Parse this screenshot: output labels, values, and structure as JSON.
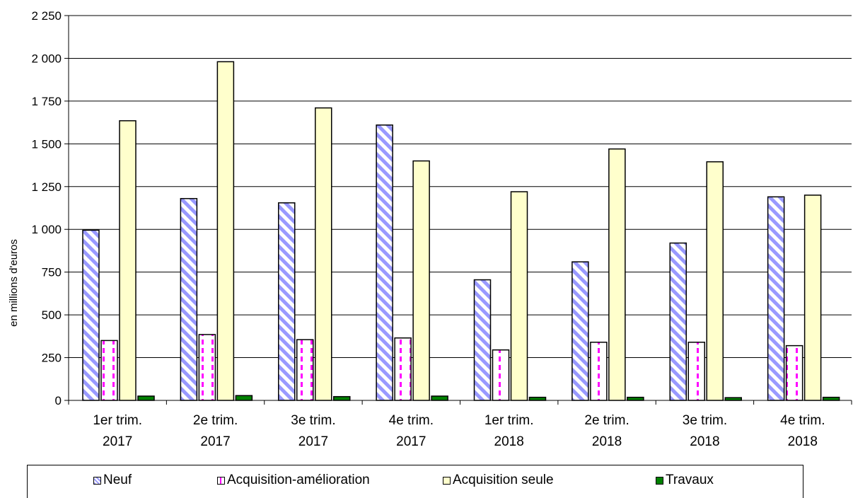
{
  "chart_data": {
    "type": "bar",
    "ylabel": "en millions d'euros",
    "ylim": [
      0,
      2250
    ],
    "yticks": [
      0,
      250,
      500,
      750,
      1000,
      1250,
      1500,
      1750,
      2000,
      2250
    ],
    "ytick_labels": [
      "0",
      "250",
      "500",
      "750",
      "1 000",
      "1 250",
      "1 500",
      "1 750",
      "2 000",
      "2 250"
    ],
    "categories": [
      [
        "1er trim.",
        "2017"
      ],
      [
        "2e trim.",
        "2017"
      ],
      [
        "3e trim.",
        "2017"
      ],
      [
        "4e trim.",
        "2017"
      ],
      [
        "1er trim.",
        "2018"
      ],
      [
        "2e trim.",
        "2018"
      ],
      [
        "3e trim.",
        "2018"
      ],
      [
        "4e trim.",
        "2018"
      ]
    ],
    "grid": true,
    "legend_position": "bottom",
    "series": [
      {
        "name": "Neuf",
        "color": "#9999ff",
        "pattern": "diagonal-stripes",
        "values": [
          995,
          1180,
          1155,
          1610,
          705,
          810,
          920,
          1190
        ]
      },
      {
        "name": "Acquisition-amélioration",
        "color": "#ff00ff",
        "pattern": "vertical-dashes",
        "values": [
          350,
          385,
          355,
          365,
          295,
          340,
          340,
          320
        ]
      },
      {
        "name": "Acquisition seule",
        "color": "#ffffcc",
        "pattern": "solid",
        "values": [
          1635,
          1980,
          1710,
          1400,
          1220,
          1470,
          1395,
          1200
        ]
      },
      {
        "name": "Travaux",
        "color": "#008000",
        "pattern": "solid",
        "values": [
          25,
          28,
          22,
          25,
          18,
          18,
          16,
          18
        ]
      }
    ]
  }
}
